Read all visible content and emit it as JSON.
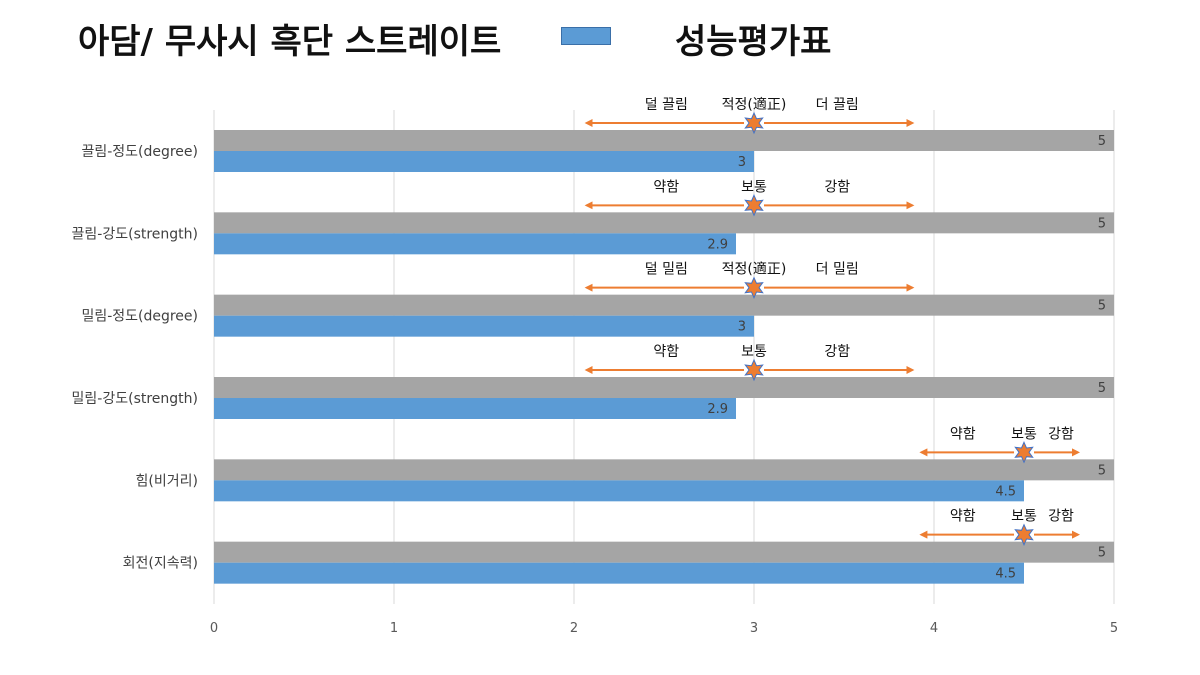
{
  "title": "아담/ 무사시 흑단 스트레이트",
  "legend": {
    "label": "성능평가표",
    "color": "#5b9bd5"
  },
  "colors": {
    "max_bar": "#a5a5a5",
    "score_bar": "#5b9bd5",
    "arrow": "#ed7d31",
    "star": "#ed7d31",
    "star_outline": "#4472c4",
    "grid": "#d9d9d9"
  },
  "chart_data": {
    "type": "bar",
    "orientation": "horizontal",
    "categories": [
      "끌림-정도(degree)",
      "끌림-강도(strength)",
      "밀림-정도(degree)",
      "밀림-강도(strength)",
      "힘(비거리)",
      "회전(지속력)"
    ],
    "series": [
      {
        "values": [
          5,
          5,
          5,
          5,
          5,
          5
        ]
      },
      {
        "values": [
          3,
          2.9,
          3,
          2.9,
          4.5,
          4.5
        ]
      }
    ],
    "xlim": [
      0,
      5
    ],
    "x_ticks": [
      "0",
      "1",
      "2",
      "3",
      "4",
      "5"
    ],
    "grid": true,
    "annotations": [
      {
        "center": 3,
        "from": 2.07,
        "to": 3.88,
        "left": "덜 끌림",
        "mid": "적정(適正)",
        "right": "더 끌림"
      },
      {
        "center": 3,
        "from": 2.07,
        "to": 3.88,
        "left": "약함",
        "mid": "보통",
        "right": "강함"
      },
      {
        "center": 3,
        "from": 2.07,
        "to": 3.88,
        "left": "덜 밀림",
        "mid": "적정(適正)",
        "right": "더 밀림"
      },
      {
        "center": 3,
        "from": 2.07,
        "to": 3.88,
        "left": "약함",
        "mid": "보통",
        "right": "강함"
      },
      {
        "center": 4.5,
        "from": 3.93,
        "to": 4.8,
        "left": "약함",
        "mid": "보통",
        "right": "강함"
      },
      {
        "center": 4.5,
        "from": 3.93,
        "to": 4.8,
        "left": "약함",
        "mid": "보통",
        "right": "강함"
      }
    ]
  }
}
